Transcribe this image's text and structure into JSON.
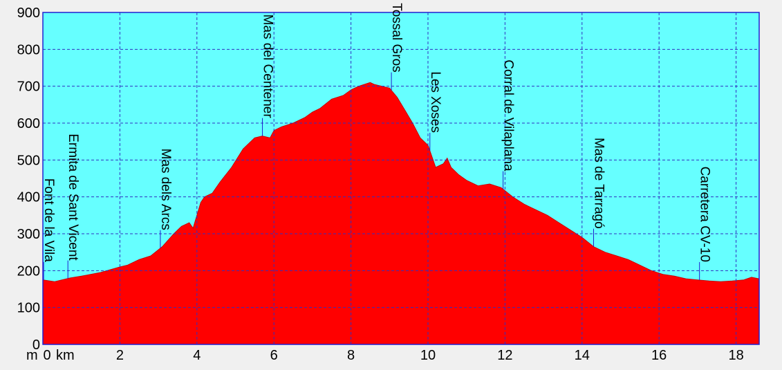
{
  "chart_data": {
    "type": "area",
    "title": "",
    "xlabel": "km",
    "ylabel": "m",
    "xlim": [
      0,
      18.6
    ],
    "ylim": [
      0,
      900
    ],
    "x_ticks": [
      "0",
      "2",
      "4",
      "6",
      "8",
      "10",
      "12",
      "14",
      "16",
      "18"
    ],
    "y_ticks": [
      "0",
      "100",
      "200",
      "300",
      "400",
      "500",
      "600",
      "700",
      "800",
      "900"
    ],
    "grid": true,
    "colors": {
      "plot_bg": "#66ffff",
      "fill": "#ff0000",
      "grid": "#3030c0",
      "frame": "#2020d0"
    },
    "series": [
      {
        "x": [
          0,
          0.3,
          0.7,
          1.0,
          1.5,
          2.0,
          2.2,
          2.5,
          2.8,
          3.1,
          3.4,
          3.6,
          3.8,
          3.9,
          4.0,
          4.1,
          4.2,
          4.4,
          4.6,
          4.9,
          5.2,
          5.5,
          5.7,
          5.9,
          6.0,
          6.2,
          6.5,
          6.8,
          7.0,
          7.2,
          7.5,
          7.8,
          8.0,
          8.2,
          8.5,
          8.6,
          8.8,
          9.0,
          9.2,
          9.4,
          9.6,
          9.8,
          10.0,
          10.2,
          10.4,
          10.5,
          10.6,
          10.8,
          11.0,
          11.3,
          11.6,
          11.9,
          12.2,
          12.5,
          12.8,
          13.1,
          13.4,
          13.7,
          14.0,
          14.3,
          14.6,
          14.9,
          15.2,
          15.5,
          15.8,
          16.1,
          16.4,
          16.7,
          17.0,
          17.3,
          17.6,
          17.9,
          18.2,
          18.4,
          18.6
        ],
        "y": [
          175,
          170,
          180,
          185,
          195,
          210,
          215,
          230,
          240,
          265,
          300,
          320,
          330,
          315,
          350,
          385,
          400,
          410,
          440,
          480,
          530,
          560,
          565,
          560,
          580,
          590,
          600,
          615,
          630,
          640,
          665,
          675,
          690,
          700,
          710,
          705,
          700,
          695,
          670,
          635,
          600,
          560,
          540,
          480,
          490,
          505,
          480,
          460,
          445,
          430,
          435,
          425,
          400,
          380,
          365,
          350,
          330,
          310,
          290,
          265,
          250,
          240,
          230,
          215,
          200,
          190,
          185,
          178,
          175,
          172,
          170,
          172,
          175,
          182,
          178
        ]
      }
    ],
    "annotations": [
      {
        "label": "Font de la Vila",
        "x": 0.02
      },
      {
        "label": "Ermita de Sant Vicent",
        "x": 0.65
      },
      {
        "label": "Mas dels Arcs",
        "x": 3.05
      },
      {
        "label": "Mas del Centener",
        "x": 5.7
      },
      {
        "label": "Mas dels Tossal Gros",
        "x": 9.05
      },
      {
        "label": "Les Xoses",
        "x": 10.05
      },
      {
        "label": "Corral de Vilaplana",
        "x": 11.95
      },
      {
        "label": "Mas de Tarragó",
        "x": 14.3
      },
      {
        "label": "Carretera CV-10",
        "x": 17.05
      }
    ]
  }
}
